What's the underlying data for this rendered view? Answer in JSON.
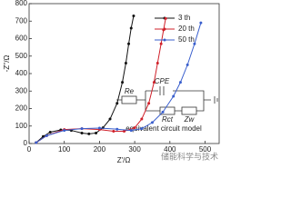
{
  "chart_data": {
    "type": "line",
    "x_label": "Z'/Ω",
    "y_label": "-Z''/Ω",
    "xlim": [
      0,
      540
    ],
    "ylim": [
      0,
      800
    ],
    "xticks": [
      0,
      100,
      200,
      300,
      400,
      500
    ],
    "yticks": [
      0,
      100,
      200,
      300,
      400,
      500,
      600,
      700,
      800
    ],
    "legend_position": "upper right",
    "series": [
      {
        "name": "3 th",
        "color": "#111111",
        "x": [
          20,
          40,
          60,
          90,
          120,
          150,
          170,
          190,
          210,
          230,
          250,
          265,
          275,
          283,
          290,
          297
        ],
        "values": [
          5,
          40,
          65,
          78,
          75,
          60,
          55,
          60,
          90,
          140,
          230,
          350,
          460,
          570,
          660,
          730
        ]
      },
      {
        "name": "20 th",
        "color": "#d0202a",
        "x": [
          20,
          50,
          100,
          150,
          200,
          240,
          270,
          300,
          320,
          340,
          355,
          365,
          375,
          382,
          388
        ],
        "values": [
          5,
          45,
          80,
          85,
          80,
          70,
          70,
          90,
          140,
          230,
          350,
          460,
          570,
          650,
          715
        ]
      },
      {
        "name": "50 th",
        "color": "#3a5fcd",
        "x": [
          20,
          50,
          100,
          150,
          200,
          250,
          290,
          320,
          350,
          380,
          410,
          430,
          450,
          470,
          488
        ],
        "values": [
          5,
          45,
          75,
          85,
          88,
          82,
          75,
          85,
          120,
          180,
          270,
          350,
          450,
          570,
          690
        ]
      }
    ],
    "circuit": {
      "labels": [
        "Re",
        "CPE",
        "Rct",
        "Zw"
      ],
      "caption": "equivalent circuit model"
    },
    "watermark": "储能科学与技术"
  }
}
